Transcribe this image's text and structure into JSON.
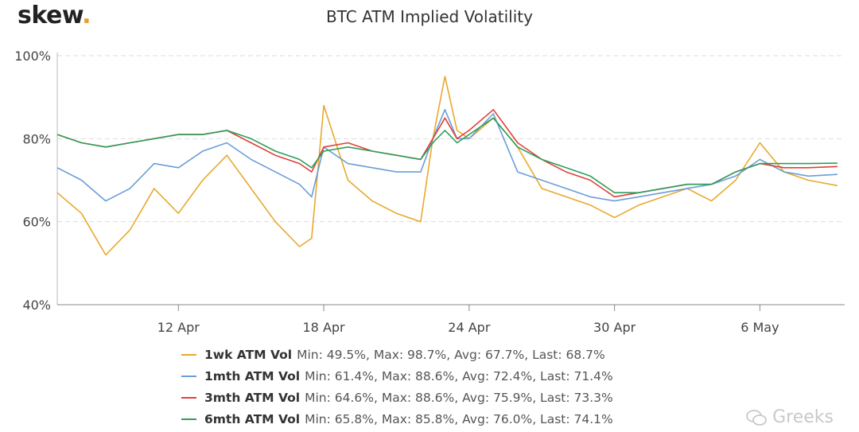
{
  "brand": {
    "name": "skew",
    "dot": "."
  },
  "watermark": "Greeks",
  "chart_data": {
    "type": "line",
    "title": "BTC ATM Implied Volatility",
    "xlabel": "",
    "ylabel": "",
    "ylim": [
      40,
      100
    ],
    "yticks": [
      "40%",
      "60%",
      "80%",
      "100%"
    ],
    "ytick_values": [
      40,
      60,
      80,
      100
    ],
    "xlim": [
      0,
      32.5
    ],
    "xticks": [
      "12 Apr",
      "18 Apr",
      "24 Apr",
      "30 Apr",
      "6 May"
    ],
    "xtick_values": [
      5,
      11,
      17,
      23,
      29
    ],
    "grid": "horizontal dashed",
    "legend": "bottom",
    "x": [
      0,
      1,
      2,
      3,
      4,
      5,
      6,
      7,
      8,
      9,
      10,
      10.5,
      11,
      12,
      13,
      14,
      15,
      15.5,
      16,
      16.5,
      17,
      18,
      19,
      20,
      21,
      22,
      23,
      24,
      25,
      26,
      27,
      28,
      29,
      30,
      31,
      32.2
    ],
    "series": [
      {
        "name": "1wk ATM Vol",
        "color": "#e8a92c",
        "stats": "Min: 49.5%, Max: 98.7%, Avg: 67.7%, Last: 68.7%",
        "values": [
          67,
          62,
          52,
          58,
          68,
          62,
          70,
          76,
          68,
          60,
          54,
          56,
          88,
          70,
          65,
          62,
          60,
          80,
          95,
          82,
          80,
          85,
          78,
          68,
          66,
          64,
          61,
          64,
          66,
          68,
          65,
          70,
          79,
          72,
          70,
          68.7
        ]
      },
      {
        "name": "1mth ATM Vol",
        "color": "#6a9ed8",
        "stats": "Min: 61.4%, Max: 88.6%, Avg: 72.4%, Last: 71.4%",
        "values": [
          73,
          70,
          65,
          68,
          74,
          73,
          77,
          79,
          75,
          72,
          69,
          66,
          78,
          74,
          73,
          72,
          72,
          80,
          87,
          80,
          80,
          86,
          72,
          70,
          68,
          66,
          65,
          66,
          67,
          68,
          69,
          71,
          75,
          72,
          71,
          71.4
        ]
      },
      {
        "name": "3mth ATM Vol",
        "color": "#e0403a",
        "stats": "Min: 64.6%, Max: 88.6%, Avg: 75.9%, Last: 73.3%",
        "values": [
          81,
          79,
          78,
          79,
          80,
          81,
          81,
          82,
          79,
          76,
          74,
          72,
          78,
          79,
          77,
          76,
          75,
          80,
          85,
          80,
          82,
          87,
          79,
          75,
          72,
          70,
          66,
          67,
          68,
          69,
          69,
          72,
          74,
          73,
          73,
          73.3
        ]
      },
      {
        "name": "6mth ATM Vol",
        "color": "#2e9e5a",
        "stats": "Min: 65.8%, Max: 85.8%, Avg: 76.0%, Last: 74.1%",
        "values": [
          81,
          79,
          78,
          79,
          80,
          81,
          81,
          82,
          80,
          77,
          75,
          73,
          77,
          78,
          77,
          76,
          75,
          79,
          82,
          79,
          81,
          85,
          78,
          75,
          73,
          71,
          67,
          67,
          68,
          69,
          69,
          72,
          74,
          74,
          74,
          74.1
        ]
      }
    ]
  }
}
